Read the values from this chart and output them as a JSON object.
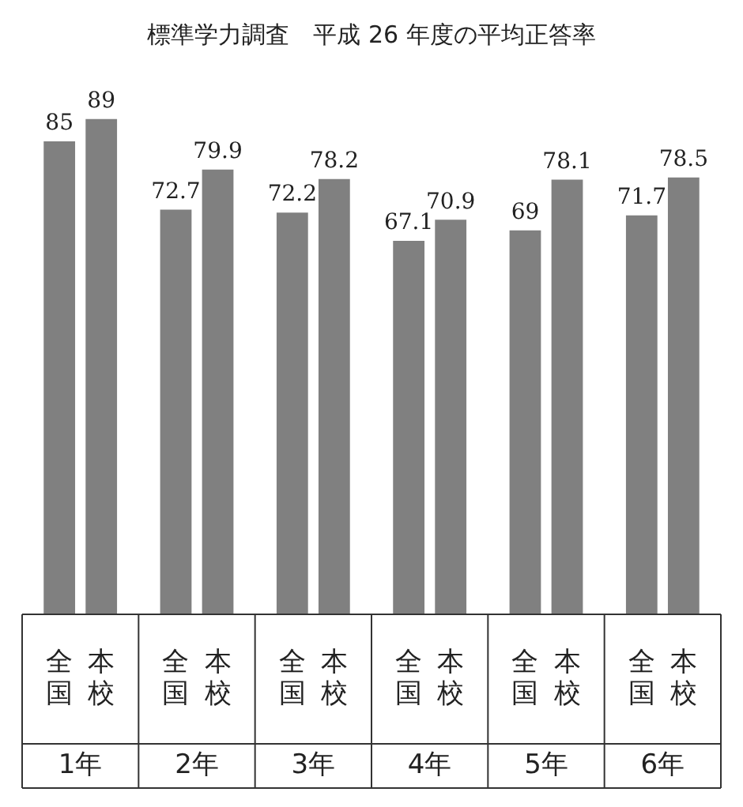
{
  "chart_data": {
    "type": "bar",
    "title": "標準学力調査　平成 26 年度の平均正答率",
    "categories": [
      "1年",
      "2年",
      "3年",
      "4年",
      "5年",
      "6年"
    ],
    "series": [
      {
        "name": "全国",
        "color": "#808080",
        "values": [
          85,
          72.7,
          72.2,
          67.1,
          69,
          71.7
        ]
      },
      {
        "name": "本校",
        "color": "#808080",
        "values": [
          89,
          79.9,
          78.2,
          70.9,
          78.1,
          78.5
        ]
      }
    ],
    "data_labels": true
  }
}
